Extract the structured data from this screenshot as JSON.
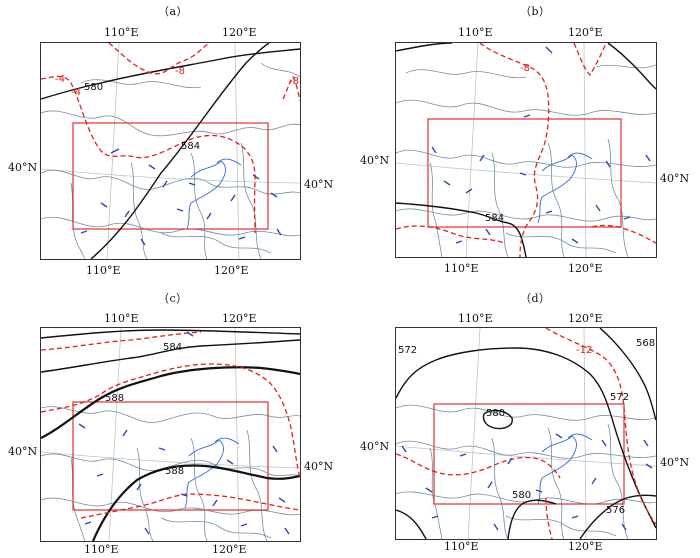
{
  "colors": {
    "height_contour": "#111111",
    "temperature_contour": "#e0201a",
    "study_box": "#e03030",
    "boundary": "#6e8fa5",
    "wind_barb": "#3344aa"
  },
  "panels": [
    {
      "label": "（a）",
      "lon_labels_top": [
        "110°E",
        "120°E"
      ],
      "lon_labels_bottom": [
        "110°E",
        "120°E"
      ],
      "lat_label_left": "40°N",
      "lat_label_right": "40°N",
      "height_contours": [
        "580",
        "584"
      ],
      "temperature_contours": [
        "-4",
        "-4",
        "-8",
        "-8"
      ]
    },
    {
      "label": "（b）",
      "lon_labels_top": [
        "110°E",
        "120°E"
      ],
      "lon_labels_bottom": [
        "110°E",
        "120°E"
      ],
      "lat_label_left": "40°N",
      "lat_label_right": "40°N",
      "height_contours": [
        "584"
      ],
      "temperature_contours": [
        "-8"
      ]
    },
    {
      "label": "（c）",
      "lon_labels_top": [
        "110°E",
        "120°E"
      ],
      "lon_labels_bottom": [
        "110°E",
        "120°E"
      ],
      "lat_label_left": "40°N",
      "lat_label_right": "40°N",
      "height_contours": [
        "584",
        "588",
        "588"
      ],
      "temperature_contours": []
    },
    {
      "label": "（d）",
      "lon_labels_top": [
        "110°E",
        "120°E"
      ],
      "lon_labels_bottom": [
        "110°E",
        "120°E"
      ],
      "lat_label_left": "40°N",
      "lat_label_right": "40°N",
      "height_contours": [
        "572",
        "568",
        "572",
        "580",
        "580",
        "576"
      ],
      "temperature_contours": [
        "-12"
      ]
    }
  ]
}
